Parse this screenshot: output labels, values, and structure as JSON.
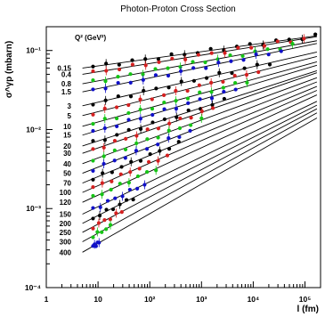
{
  "chart_data": {
    "type": "scatter",
    "title": "Photon-Proton Cross Section",
    "xlabel": "l (fm)",
    "ylabel": "σ^γp (mbarn)",
    "x_scale": "log",
    "y_scale": "log",
    "xlim": [
      1,
      200000
    ],
    "ylim": [
      0.0001,
      0.2
    ],
    "x_ticks": [
      {
        "value": 1,
        "label": "1"
      },
      {
        "value": 10,
        "label": "10"
      },
      {
        "value": 100,
        "label": "10²"
      },
      {
        "value": 1000,
        "label": "10³"
      },
      {
        "value": 10000,
        "label": "10⁴"
      },
      {
        "value": 100000,
        "label": "10⁵"
      }
    ],
    "y_ticks": [
      {
        "value": 0.1,
        "label": "10⁻¹"
      },
      {
        "value": 0.01,
        "label": "10⁻²"
      },
      {
        "value": 0.001,
        "label": "10⁻³"
      },
      {
        "value": 0.0001,
        "label": "10⁻⁴"
      }
    ],
    "legend_title": "Q² (GeV²)",
    "grid": false,
    "colors": [
      "#000000",
      "#d42020",
      "#16c416",
      "#1010c8"
    ],
    "series": [
      {
        "name": "0.15",
        "color": "#000000",
        "x_start": 5,
        "y_start": 0.06,
        "slope": 0.09
      },
      {
        "name": "0.4",
        "color": "#d42020",
        "x_start": 5,
        "y_start": 0.05,
        "slope": 0.105
      },
      {
        "name": "0.8",
        "color": "#16c416",
        "x_start": 5,
        "y_start": 0.038,
        "slope": 0.12
      },
      {
        "name": "1.5",
        "color": "#1010c8",
        "x_start": 5,
        "y_start": 0.03,
        "slope": 0.135
      },
      {
        "name": "3",
        "color": "#000000",
        "x_start": 5,
        "y_start": 0.02,
        "slope": 0.15
      },
      {
        "name": "5",
        "color": "#d42020",
        "x_start": 5,
        "y_start": 0.015,
        "slope": 0.165
      },
      {
        "name": "10",
        "color": "#16c416",
        "x_start": 5,
        "y_start": 0.011,
        "slope": 0.18
      },
      {
        "name": "15",
        "color": "#1010c8",
        "x_start": 5,
        "y_start": 0.0085,
        "slope": 0.195
      },
      {
        "name": "20",
        "color": "#000000",
        "x_start": 5,
        "y_start": 0.0062,
        "slope": 0.21
      },
      {
        "name": "30",
        "color": "#d42020",
        "x_start": 5,
        "y_start": 0.005,
        "slope": 0.225
      },
      {
        "name": "40",
        "color": "#16c416",
        "x_start": 5,
        "y_start": 0.0037,
        "slope": 0.24
      },
      {
        "name": "50",
        "color": "#1010c8",
        "x_start": 5,
        "y_start": 0.0028,
        "slope": 0.255
      },
      {
        "name": "70",
        "color": "#000000",
        "x_start": 5,
        "y_start": 0.0021,
        "slope": 0.27
      },
      {
        "name": "100",
        "color": "#d42020",
        "x_start": 5,
        "y_start": 0.0016,
        "slope": 0.285
      },
      {
        "name": "120",
        "color": "#16c416",
        "x_start": 5,
        "y_start": 0.0012,
        "slope": 0.3
      },
      {
        "name": "150",
        "color": "#1010c8",
        "x_start": 5,
        "y_start": 0.00085,
        "slope": 0.315
      },
      {
        "name": "200",
        "color": "#000000",
        "x_start": 5,
        "y_start": 0.00065,
        "slope": 0.33
      },
      {
        "name": "250",
        "color": "#d42020",
        "x_start": 5,
        "y_start": 0.0005,
        "slope": 0.345
      },
      {
        "name": "300",
        "color": "#16c416",
        "x_start": 5,
        "y_start": 0.00038,
        "slope": 0.36
      },
      {
        "name": "400",
        "color": "#1010c8",
        "x_start": 5,
        "y_start": 0.00028,
        "slope": 0.375
      }
    ]
  }
}
